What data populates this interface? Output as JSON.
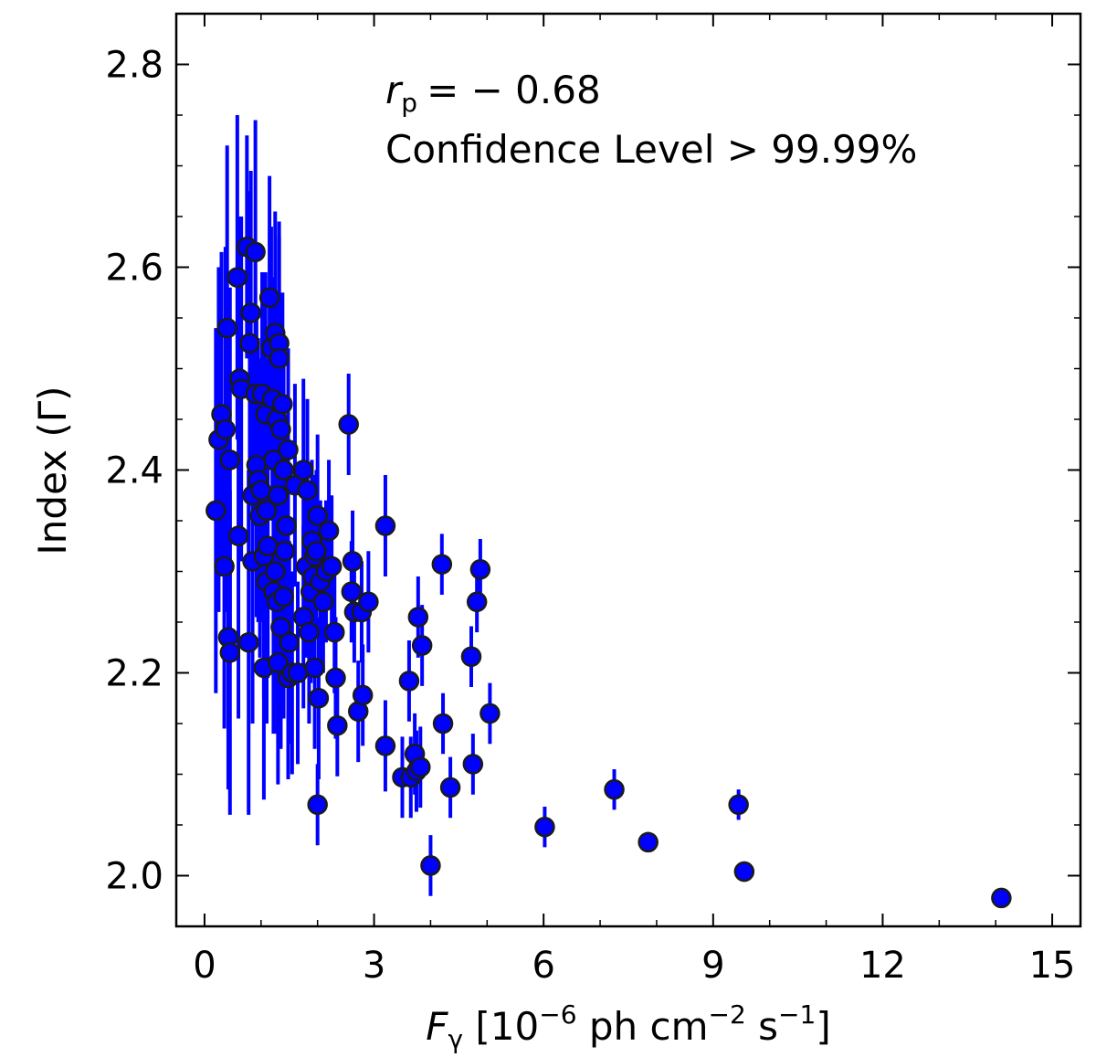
{
  "chart_data": {
    "type": "scatter",
    "title": "",
    "xlabel": {
      "var": "F",
      "sub": "γ",
      "text": " [10",
      "exp1": "−6",
      "mid": " ph cm",
      "exp2": "−2",
      "mid2": " s",
      "exp3": "−1",
      "end": "]"
    },
    "ylabel": "Index (Γ)",
    "xlim": [
      -0.5,
      15.5
    ],
    "ylim": [
      1.95,
      2.85
    ],
    "xticks": [
      0,
      3,
      6,
      9,
      12,
      15
    ],
    "yticks": [
      2.0,
      2.2,
      2.4,
      2.6,
      2.8
    ],
    "ytick_labels": [
      "2.0",
      "2.2",
      "2.4",
      "2.6",
      "2.8"
    ],
    "xtick_labels": [
      "0",
      "3",
      "6",
      "9",
      "12",
      "15"
    ],
    "grid": false,
    "annotation": {
      "r_symbol": "r",
      "r_sub": "p",
      "r_value": "= − 0.68",
      "confidence": "Confidence Level > 99.99%"
    },
    "series": [
      {
        "name": "data",
        "marker_color": "#0000ff",
        "errorbar_color": "#0000ff",
        "points": [
          [
            0.2,
            2.36,
            0.18
          ],
          [
            0.25,
            2.43,
            0.17
          ],
          [
            0.3,
            2.455,
            0.16
          ],
          [
            0.35,
            2.305,
            0.16
          ],
          [
            0.37,
            2.44,
            0.18
          ],
          [
            0.4,
            2.54,
            0.18
          ],
          [
            0.42,
            2.235,
            0.15
          ],
          [
            0.45,
            2.41,
            0.17
          ],
          [
            0.45,
            2.22,
            0.16
          ],
          [
            0.58,
            2.59,
            0.16
          ],
          [
            0.6,
            2.335,
            0.18
          ],
          [
            0.62,
            2.49,
            0.16
          ],
          [
            0.65,
            2.48,
            0.17
          ],
          [
            0.75,
            2.62,
            0.11
          ],
          [
            0.78,
            2.23,
            0.17
          ],
          [
            0.8,
            2.525,
            0.15
          ],
          [
            0.82,
            2.555,
            0.14
          ],
          [
            0.85,
            2.375,
            0.15
          ],
          [
            0.85,
            2.31,
            0.16
          ],
          [
            0.9,
            2.615,
            0.13
          ],
          [
            0.9,
            2.475,
            0.13
          ],
          [
            0.92,
            2.405,
            0.15
          ],
          [
            0.95,
            2.39,
            0.14
          ],
          [
            0.98,
            2.355,
            0.14
          ],
          [
            1.0,
            2.38,
            0.13
          ],
          [
            1.02,
            2.475,
            0.12
          ],
          [
            1.05,
            2.205,
            0.13
          ],
          [
            1.05,
            2.315,
            0.14
          ],
          [
            1.08,
            2.455,
            0.14
          ],
          [
            1.1,
            2.36,
            0.15
          ],
          [
            1.1,
            2.29,
            0.14
          ],
          [
            1.12,
            2.325,
            0.13
          ],
          [
            1.15,
            2.57,
            0.12
          ],
          [
            1.18,
            2.52,
            0.12
          ],
          [
            1.2,
            2.47,
            0.12
          ],
          [
            1.22,
            2.41,
            0.12
          ],
          [
            1.22,
            2.28,
            0.14
          ],
          [
            1.25,
            2.535,
            0.12
          ],
          [
            1.25,
            2.3,
            0.13
          ],
          [
            1.28,
            2.45,
            0.12
          ],
          [
            1.28,
            2.27,
            0.13
          ],
          [
            1.3,
            2.375,
            0.12
          ],
          [
            1.3,
            2.21,
            0.12
          ],
          [
            1.32,
            2.525,
            0.12
          ],
          [
            1.32,
            2.51,
            0.12
          ],
          [
            1.35,
            2.245,
            0.12
          ],
          [
            1.35,
            2.44,
            0.11
          ],
          [
            1.38,
            2.465,
            0.11
          ],
          [
            1.4,
            2.275,
            0.12
          ],
          [
            1.4,
            2.4,
            0.12
          ],
          [
            1.42,
            2.32,
            0.11
          ],
          [
            1.45,
            2.345,
            0.11
          ],
          [
            1.48,
            2.42,
            0.1
          ],
          [
            1.48,
            2.195,
            0.1
          ],
          [
            1.5,
            2.23,
            0.1
          ],
          [
            1.55,
            2.2,
            0.1
          ],
          [
            1.6,
            2.385,
            0.1
          ],
          [
            1.65,
            2.2,
            0.09
          ],
          [
            1.75,
            2.4,
            0.09
          ],
          [
            1.75,
            2.255,
            0.09
          ],
          [
            1.8,
            2.305,
            0.09
          ],
          [
            1.82,
            2.38,
            0.09
          ],
          [
            1.85,
            2.24,
            0.09
          ],
          [
            1.88,
            2.28,
            0.09
          ],
          [
            1.9,
            2.33,
            0.08
          ],
          [
            1.92,
            2.295,
            0.08
          ],
          [
            1.95,
            2.205,
            0.08
          ],
          [
            1.95,
            2.315,
            0.08
          ],
          [
            1.98,
            2.32,
            0.08
          ],
          [
            2.0,
            2.355,
            0.08
          ],
          [
            2.0,
            2.07,
            0.04
          ],
          [
            2.02,
            2.175,
            0.08
          ],
          [
            2.05,
            2.29,
            0.08
          ],
          [
            2.1,
            2.27,
            0.07
          ],
          [
            2.15,
            2.3,
            0.07
          ],
          [
            2.2,
            2.34,
            0.07
          ],
          [
            2.25,
            2.305,
            0.07
          ],
          [
            2.3,
            2.24,
            0.06
          ],
          [
            2.32,
            2.195,
            0.06
          ],
          [
            2.35,
            2.148,
            0.05
          ],
          [
            2.55,
            2.445,
            0.05
          ],
          [
            2.6,
            2.28,
            0.05
          ],
          [
            2.62,
            2.31,
            0.05
          ],
          [
            2.65,
            2.26,
            0.05
          ],
          [
            2.72,
            2.162,
            0.05
          ],
          [
            2.78,
            2.26,
            0.05
          ],
          [
            2.8,
            2.178,
            0.05
          ],
          [
            2.9,
            2.27,
            0.05
          ],
          [
            3.2,
            2.345,
            0.05
          ],
          [
            3.2,
            2.128,
            0.045
          ],
          [
            3.5,
            2.097,
            0.04
          ],
          [
            3.62,
            2.192,
            0.04
          ],
          [
            3.65,
            2.097,
            0.04
          ],
          [
            3.72,
            2.12,
            0.04
          ],
          [
            3.75,
            2.103,
            0.04
          ],
          [
            3.78,
            2.255,
            0.04
          ],
          [
            3.82,
            2.107,
            0.04
          ],
          [
            3.85,
            2.227,
            0.04
          ],
          [
            4.0,
            2.01,
            0.03
          ],
          [
            4.2,
            2.307,
            0.03
          ],
          [
            4.22,
            2.15,
            0.03
          ],
          [
            4.35,
            2.087,
            0.03
          ],
          [
            4.72,
            2.216,
            0.03
          ],
          [
            4.75,
            2.11,
            0.03
          ],
          [
            4.82,
            2.27,
            0.03
          ],
          [
            4.88,
            2.302,
            0.03
          ],
          [
            5.05,
            2.16,
            0.03
          ],
          [
            6.02,
            2.048,
            0.02
          ],
          [
            7.25,
            2.085,
            0.02
          ],
          [
            7.85,
            2.033,
            0.01
          ],
          [
            9.45,
            2.07,
            0.015
          ],
          [
            9.55,
            2.004,
            0.01
          ],
          [
            14.1,
            1.978,
            0.008
          ]
        ]
      }
    ]
  }
}
